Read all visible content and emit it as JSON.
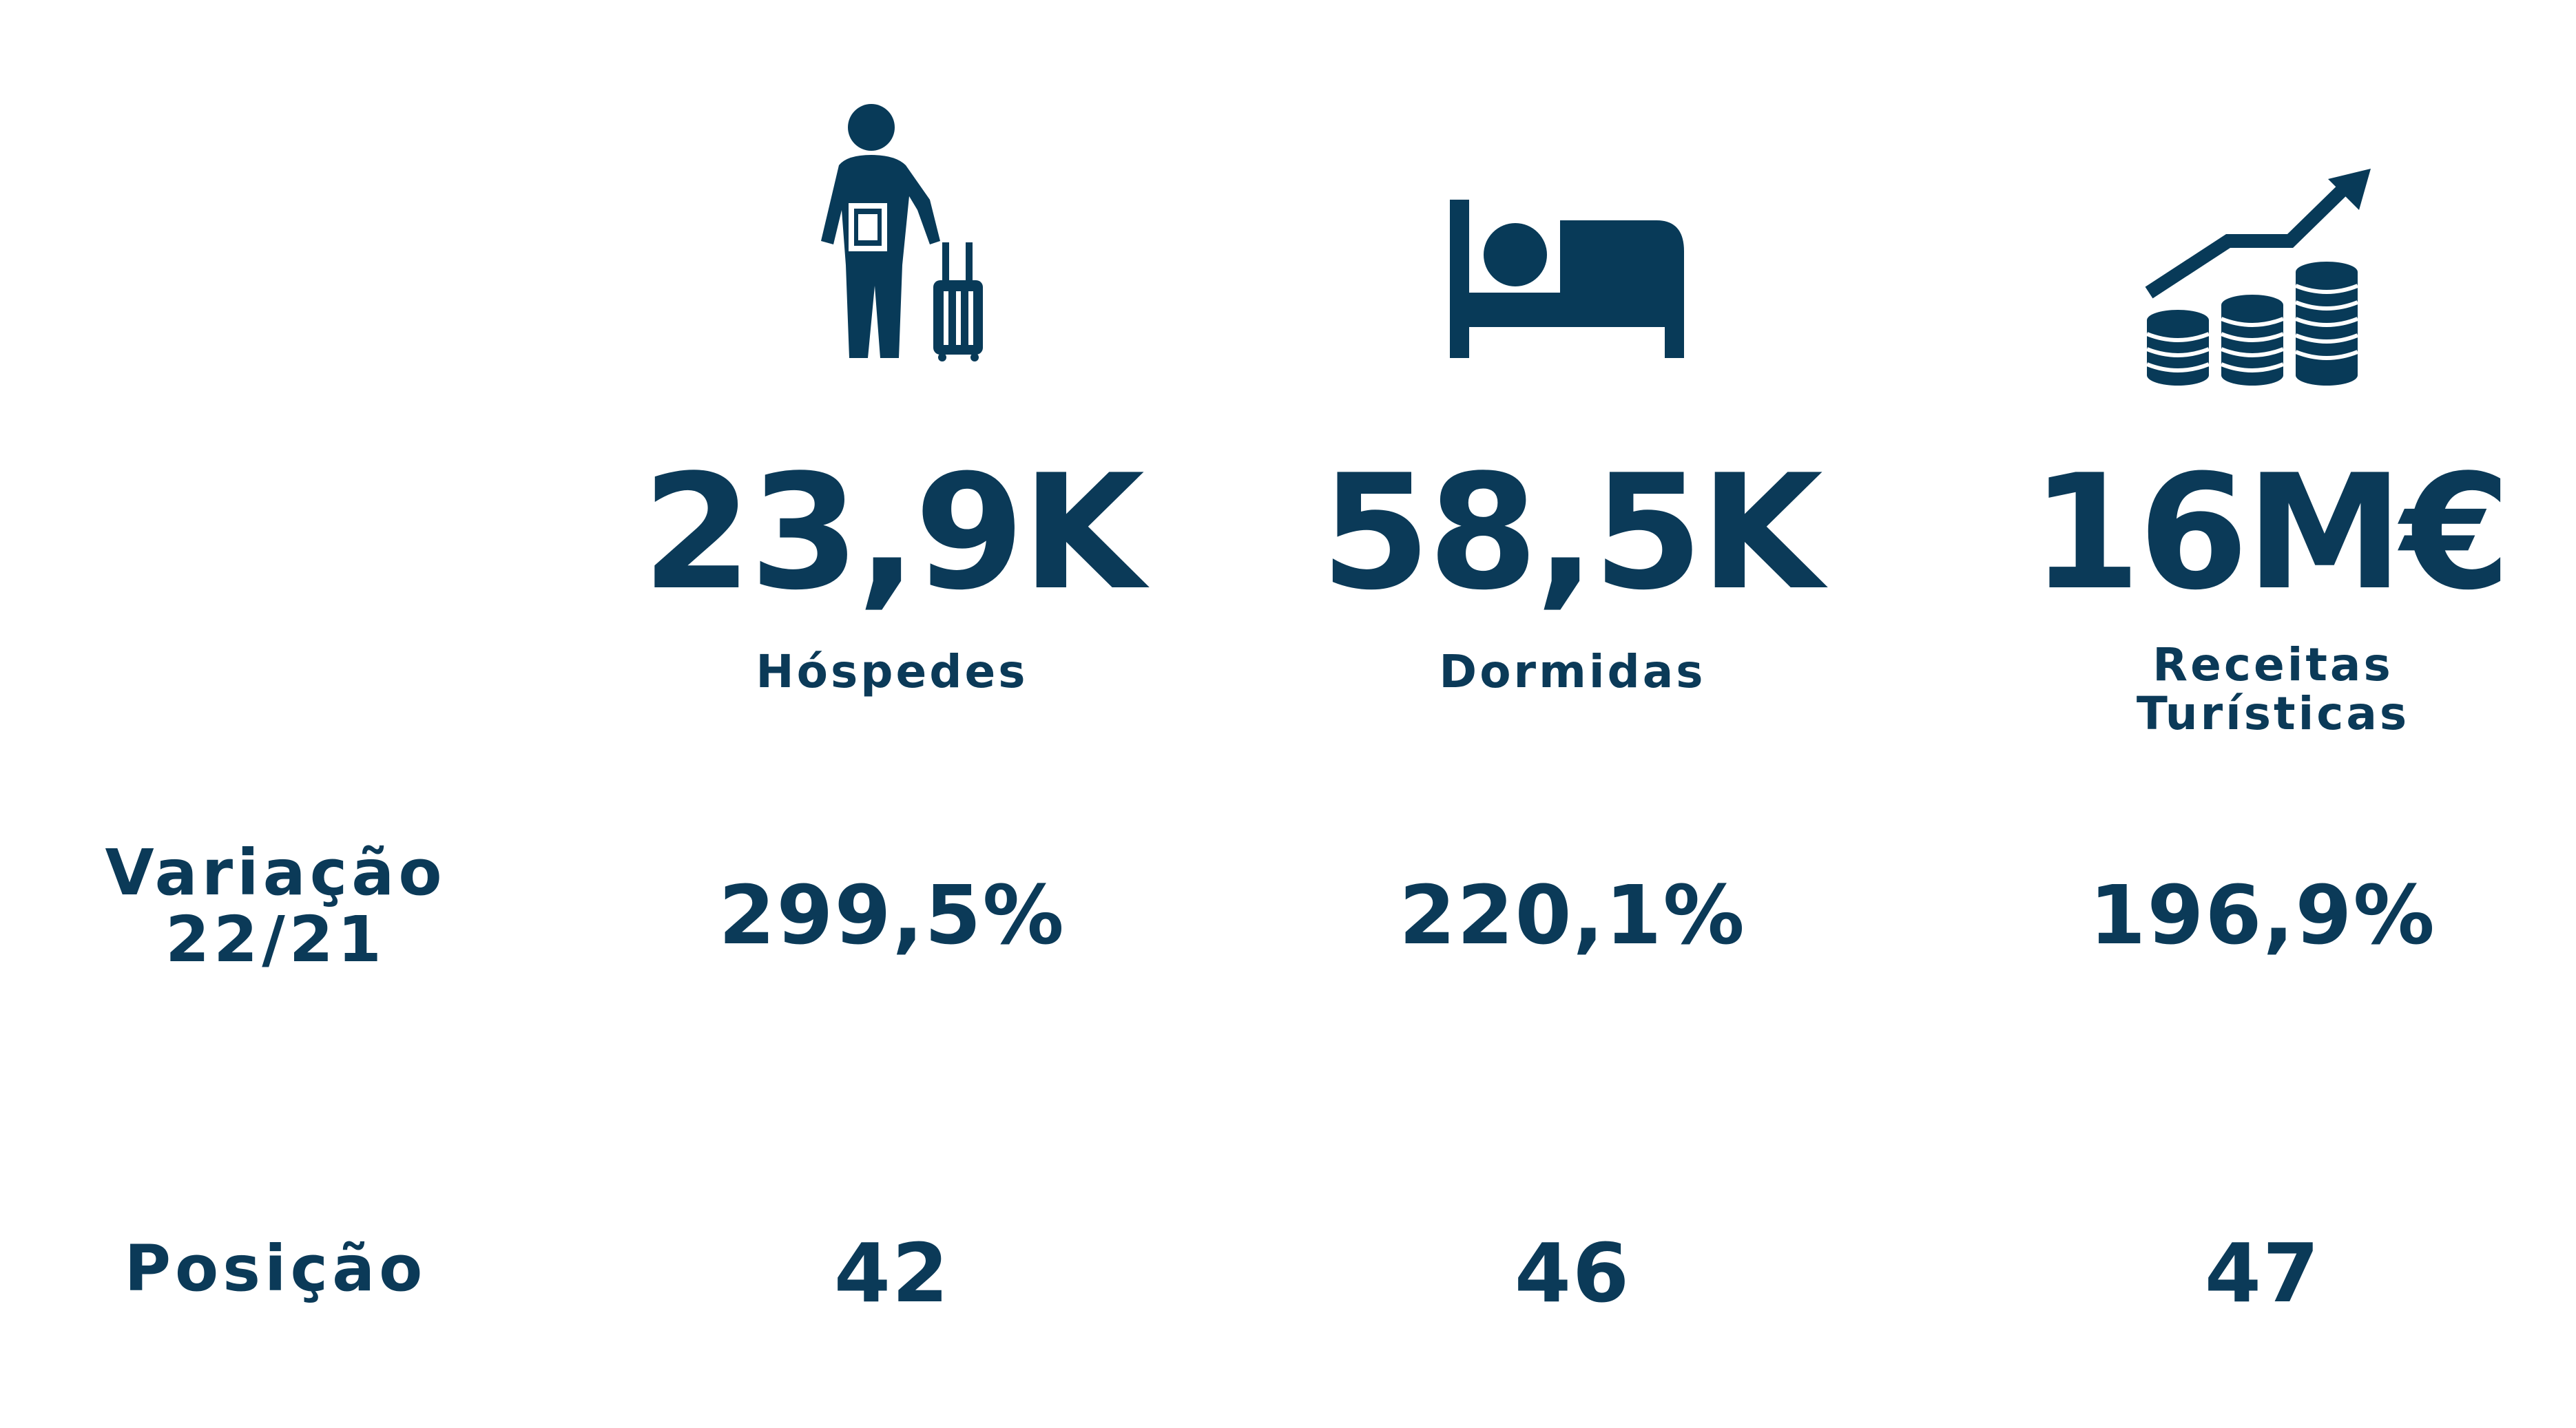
{
  "metrics": [
    {
      "icon": "traveler-with-luggage-icon",
      "value": "23,9K",
      "label": "Hóspedes",
      "variation": "299,5%",
      "position": "42"
    },
    {
      "icon": "bed-sleeping-icon",
      "value": "58,5K",
      "label": "Dormidas",
      "variation": "220,1%",
      "position": "46"
    },
    {
      "icon": "coins-growth-icon",
      "value": "16M€",
      "label_lines": [
        "Receitas",
        "Turísticas"
      ],
      "variation": "196,9%",
      "position": "47"
    }
  ],
  "rows": {
    "variation_label_lines": [
      "Variação",
      "22/21"
    ],
    "position_label": "Posição"
  },
  "colors": {
    "primary": "#0b3a58",
    "background": "#ffffff"
  }
}
